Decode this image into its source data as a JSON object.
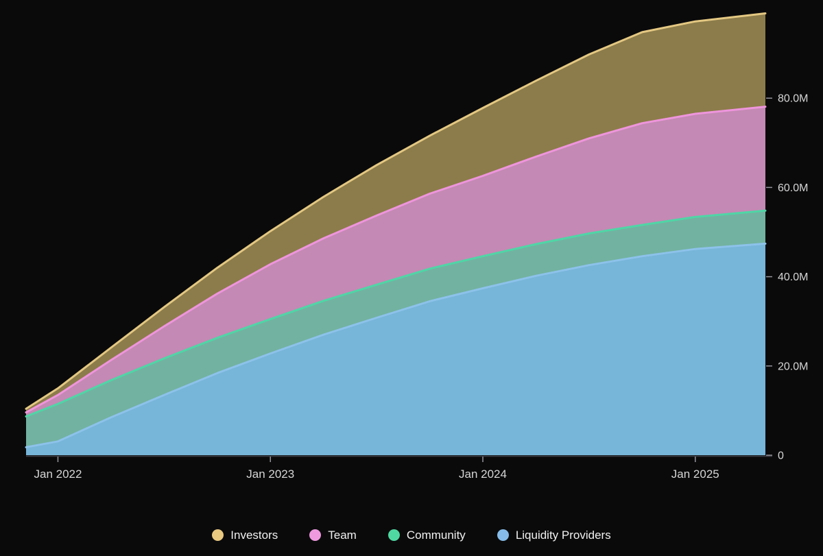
{
  "page": {
    "background": "#0a0a0b"
  },
  "chart_data": {
    "type": "area",
    "stacked": true,
    "title": "",
    "xlabel": "",
    "ylabel": "",
    "grid": false,
    "y_axis_side": "right",
    "legend_position": "bottom",
    "xlim": [
      2021.85,
      2025.33
    ],
    "ylim": [
      0,
      100
    ],
    "y_unit": "M tokens",
    "x": [
      2021.85,
      2022.0,
      2022.25,
      2022.5,
      2022.75,
      2023.0,
      2023.25,
      2023.5,
      2023.75,
      2024.0,
      2024.25,
      2024.5,
      2024.75,
      2025.0,
      2025.33
    ],
    "series": [
      {
        "name": "Liquidity Providers",
        "color": "#8cc2ea",
        "fill": "#77b5d9",
        "values": [
          1.8,
          3.1,
          8.5,
          13.5,
          18.4,
          22.8,
          27.0,
          30.8,
          34.5,
          37.4,
          40.2,
          42.6,
          44.6,
          46.2,
          47.4
        ]
      },
      {
        "name": "Community",
        "color": "#4fd6a6",
        "fill": "#72b2a0",
        "values": [
          6.9,
          8.4,
          8.3,
          8.2,
          7.9,
          7.7,
          7.6,
          7.4,
          7.3,
          7.2,
          7.1,
          7.1,
          7.0,
          7.2,
          7.4
        ]
      },
      {
        "name": "Team",
        "color": "#ee95dc",
        "fill": "#c489b4",
        "values": [
          0.9,
          2.0,
          4.5,
          7.2,
          9.9,
          12.3,
          14.0,
          15.5,
          16.8,
          18.0,
          19.6,
          21.3,
          22.8,
          23.1,
          23.3
        ]
      },
      {
        "name": "Investors",
        "color": "#e4c882",
        "fill": "#8c7c4b",
        "values": [
          0.8,
          1.5,
          2.8,
          4.3,
          5.8,
          7.4,
          9.3,
          11.3,
          13.0,
          15.2,
          17.0,
          18.8,
          20.4,
          20.7,
          20.9
        ]
      }
    ],
    "x_ticks": [
      {
        "value": 2022.0,
        "label": "Jan 2022"
      },
      {
        "value": 2023.0,
        "label": "Jan 2023"
      },
      {
        "value": 2024.0,
        "label": "Jan 2024"
      },
      {
        "value": 2025.0,
        "label": "Jan 2025"
      }
    ],
    "y_ticks": [
      {
        "value": 0,
        "label": "0"
      },
      {
        "value": 20,
        "label": "20.0M"
      },
      {
        "value": 40,
        "label": "40.0M"
      },
      {
        "value": 60,
        "label": "60.0M"
      },
      {
        "value": 80,
        "label": "80.0M"
      }
    ]
  },
  "legend": {
    "items": [
      {
        "label": "Investors",
        "color": "#e9c87f"
      },
      {
        "label": "Team",
        "color": "#ef9ade"
      },
      {
        "label": "Community",
        "color": "#4fd8a2"
      },
      {
        "label": "Liquidity Providers",
        "color": "#85bbe8"
      }
    ]
  },
  "axis_style": {
    "text_color": "#d6d6d6",
    "tick_color": "#94949b",
    "line_color": "#3f3f46",
    "x_label_size": 17,
    "y_label_size": 16
  }
}
